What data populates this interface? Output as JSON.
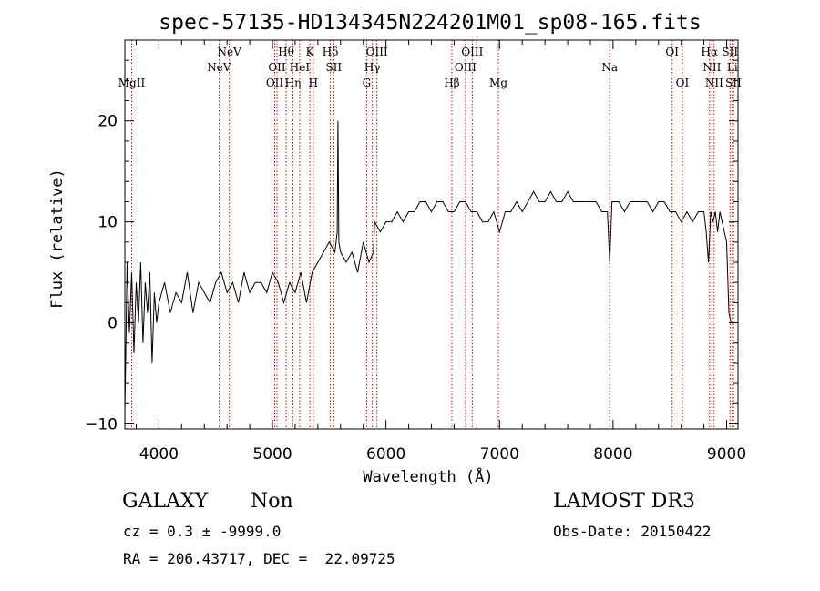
{
  "chart_data": {
    "type": "line",
    "title": "spec-57135-HD134345N224201M01_sp08-165.fits",
    "xlabel": "Wavelength (Å)",
    "ylabel": "Flux (relative)",
    "xlim": [
      3700,
      9100
    ],
    "ylim": [
      -10.5,
      28
    ],
    "xticks": [
      4000,
      5000,
      6000,
      7000,
      8000,
      9000
    ],
    "yticks": [
      -10,
      0,
      10,
      20
    ],
    "series": [
      {
        "name": "spectrum",
        "x": [
          3700,
          3720,
          3740,
          3760,
          3780,
          3800,
          3820,
          3840,
          3860,
          3880,
          3900,
          3920,
          3940,
          3960,
          3980,
          4000,
          4050,
          4100,
          4150,
          4200,
          4250,
          4300,
          4350,
          4400,
          4450,
          4500,
          4550,
          4600,
          4650,
          4700,
          4750,
          4800,
          4850,
          4900,
          4950,
          5000,
          5050,
          5100,
          5150,
          5200,
          5250,
          5300,
          5350,
          5400,
          5450,
          5500,
          5550,
          5570,
          5577,
          5585,
          5600,
          5650,
          5700,
          5750,
          5800,
          5850,
          5890,
          5900,
          5950,
          6000,
          6050,
          6100,
          6150,
          6200,
          6250,
          6300,
          6350,
          6400,
          6450,
          6500,
          6550,
          6600,
          6650,
          6700,
          6750,
          6800,
          6850,
          6900,
          6950,
          7000,
          7050,
          7100,
          7150,
          7200,
          7250,
          7300,
          7350,
          7400,
          7450,
          7500,
          7550,
          7600,
          7650,
          7700,
          7750,
          7800,
          7850,
          7900,
          7950,
          7970,
          7990,
          8050,
          8100,
          8150,
          8200,
          8250,
          8300,
          8350,
          8400,
          8450,
          8500,
          8550,
          8600,
          8650,
          8700,
          8750,
          8800,
          8820,
          8840,
          8860,
          8880,
          8900,
          8920,
          8940,
          8960,
          8980,
          9000,
          9020,
          9040
        ],
        "y": [
          -9,
          6,
          -1,
          5,
          -3,
          4,
          0,
          6,
          -2,
          4,
          1,
          5,
          -4,
          3,
          0,
          2,
          4,
          1,
          3,
          2,
          5,
          1,
          4,
          3,
          2,
          4,
          5,
          3,
          4,
          2,
          5,
          3,
          4,
          4,
          3,
          5,
          4,
          2,
          4,
          3,
          5,
          2,
          5,
          6,
          7,
          8,
          7,
          9,
          20,
          8,
          7,
          6,
          7,
          5,
          8,
          6,
          7,
          10,
          9,
          10,
          10,
          11,
          10,
          11,
          11,
          12,
          12,
          11,
          12,
          12,
          11,
          11,
          12,
          12,
          11,
          11,
          10,
          10,
          11,
          9,
          11,
          11,
          12,
          11,
          12,
          13,
          12,
          12,
          13,
          12,
          12,
          13,
          12,
          12,
          12,
          12,
          12,
          11,
          11,
          6,
          12,
          12,
          11,
          12,
          12,
          12,
          12,
          11,
          12,
          12,
          11,
          11,
          10,
          11,
          10,
          11,
          11,
          9,
          6,
          11,
          10,
          11,
          9,
          11,
          10,
          9,
          8,
          1,
          0
        ]
      }
    ],
    "lines": [
      {
        "label": "MgII",
        "x": 3760,
        "tier": 3
      },
      {
        "label": "NeV",
        "x": 4530,
        "tier": 2
      },
      {
        "label": "NeV",
        "x": 4620,
        "tier": 1
      },
      {
        "label": "OII",
        "x": 5020,
        "tier": 3
      },
      {
        "label": "OII",
        "x": 5040,
        "tier": 2
      },
      {
        "label": "Hθ",
        "x": 5120,
        "tier": 1
      },
      {
        "label": "Hη",
        "x": 5180,
        "tier": 3
      },
      {
        "label": "HeI",
        "x": 5240,
        "tier": 2
      },
      {
        "label": "K",
        "x": 5330,
        "tier": 1
      },
      {
        "label": "H",
        "x": 5360,
        "tier": 3
      },
      {
        "label": "Hδ",
        "x": 5510,
        "tier": 1
      },
      {
        "label": "SII",
        "x": 5540,
        "tier": 2
      },
      {
        "label": "G",
        "x": 5830,
        "tier": 3
      },
      {
        "label": "Hγ",
        "x": 5880,
        "tier": 2
      },
      {
        "label": "OIII",
        "x": 5920,
        "tier": 1
      },
      {
        "label": "Hβ",
        "x": 6580,
        "tier": 3
      },
      {
        "label": "OIII",
        "x": 6700,
        "tier": 2
      },
      {
        "label": "OIII",
        "x": 6760,
        "tier": 1
      },
      {
        "label": "Mg",
        "x": 6990,
        "tier": 3
      },
      {
        "label": "Na",
        "x": 7970,
        "tier": 2
      },
      {
        "label": "OI",
        "x": 8520,
        "tier": 1
      },
      {
        "label": "OI",
        "x": 8610,
        "tier": 3
      },
      {
        "label": "Hα",
        "x": 8850,
        "tier": 1
      },
      {
        "label": "NII",
        "x": 8870,
        "tier": 2
      },
      {
        "label": "NII",
        "x": 8890,
        "tier": 3
      },
      {
        "label": "SII",
        "x": 9030,
        "tier": 1
      },
      {
        "label": "Li",
        "x": 9050,
        "tier": 2
      },
      {
        "label": "SII",
        "x": 9060,
        "tier": 3
      }
    ]
  },
  "info": {
    "class_label": "GALAXY",
    "subclass_label": "Non",
    "survey": "LAMOST DR3",
    "cz_line": "cz = 0.3 ± -9999.0",
    "obs_date": "Obs-Date: 20150422",
    "coords": "RA = 206.43717, DEC =  22.09725"
  },
  "colors": {
    "spectrum": "#000000",
    "line_marker": "#cc0000",
    "axis": "#000000"
  }
}
